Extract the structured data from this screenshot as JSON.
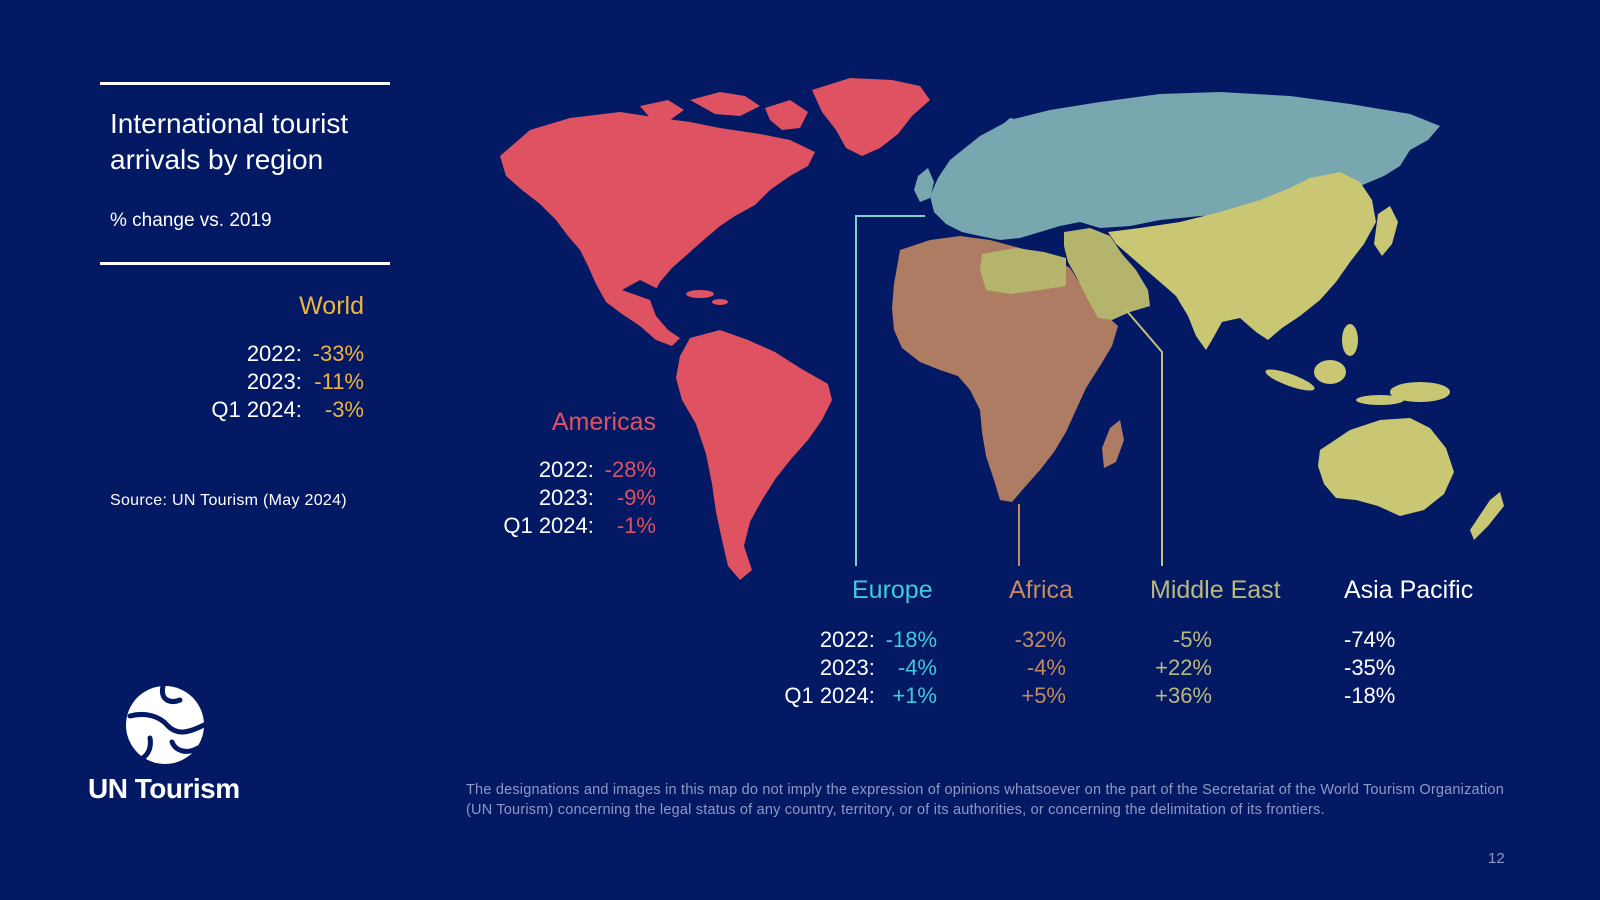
{
  "title": "International tourist arrivals by region",
  "subtitle": "% change vs. 2019",
  "source": "Source: UN Tourism  (May 2024)",
  "brand": {
    "name": "UN Tourism"
  },
  "colors": {
    "background": "#031964",
    "world": "#f0b43c",
    "americas": "#de5261",
    "europe": "#42c8dc",
    "europe_land": "#79a7af",
    "africa": "#c58a5e",
    "africa_land": "#ad7c62",
    "middle_east": "#b9b97a",
    "middle_east_land": "#b5b46c",
    "asia_pacific": "#ffffff",
    "asia_pacific_land": "#c9c674"
  },
  "regions": {
    "world": {
      "name": "World",
      "rows": [
        {
          "label": "2022:",
          "value": "-33%"
        },
        {
          "label": "2023:",
          "value": "-11%"
        },
        {
          "label": "Q1 2024:",
          "value": "-3%"
        }
      ]
    },
    "americas": {
      "name": "Americas",
      "rows": [
        {
          "label": "2022:",
          "value": "-28%"
        },
        {
          "label": "2023:",
          "value": "-9%"
        },
        {
          "label": "Q1 2024:",
          "value": "-1%"
        }
      ]
    },
    "europe": {
      "name": "Europe",
      "rows": [
        {
          "label": "2022:",
          "value": "-18%"
        },
        {
          "label": "2023:",
          "value": "-4%"
        },
        {
          "label": "Q1 2024:",
          "value": "+1%"
        }
      ]
    },
    "africa": {
      "name": "Africa",
      "rows": [
        {
          "value": "-32%"
        },
        {
          "value": "-4%"
        },
        {
          "value": "+5%"
        }
      ]
    },
    "middle_east": {
      "name": "Middle East",
      "rows": [
        {
          "value": "-5%"
        },
        {
          "value": "+22%"
        },
        {
          "value": "+36%"
        }
      ]
    },
    "asia_pacific": {
      "name": "Asia Pacific",
      "rows": [
        {
          "value": "-74%"
        },
        {
          "value": "-35%"
        },
        {
          "value": "-18%"
        }
      ]
    }
  },
  "disclaimer": "The designations and images in this map do not imply the expression of opinions whatsoever on the part of the Secretariat of the World Tourism Organization (UN Tourism) concerning the legal status of any country, territory, or of its authorities, or concerning the delimitation of its frontiers.",
  "page_number": "12"
}
